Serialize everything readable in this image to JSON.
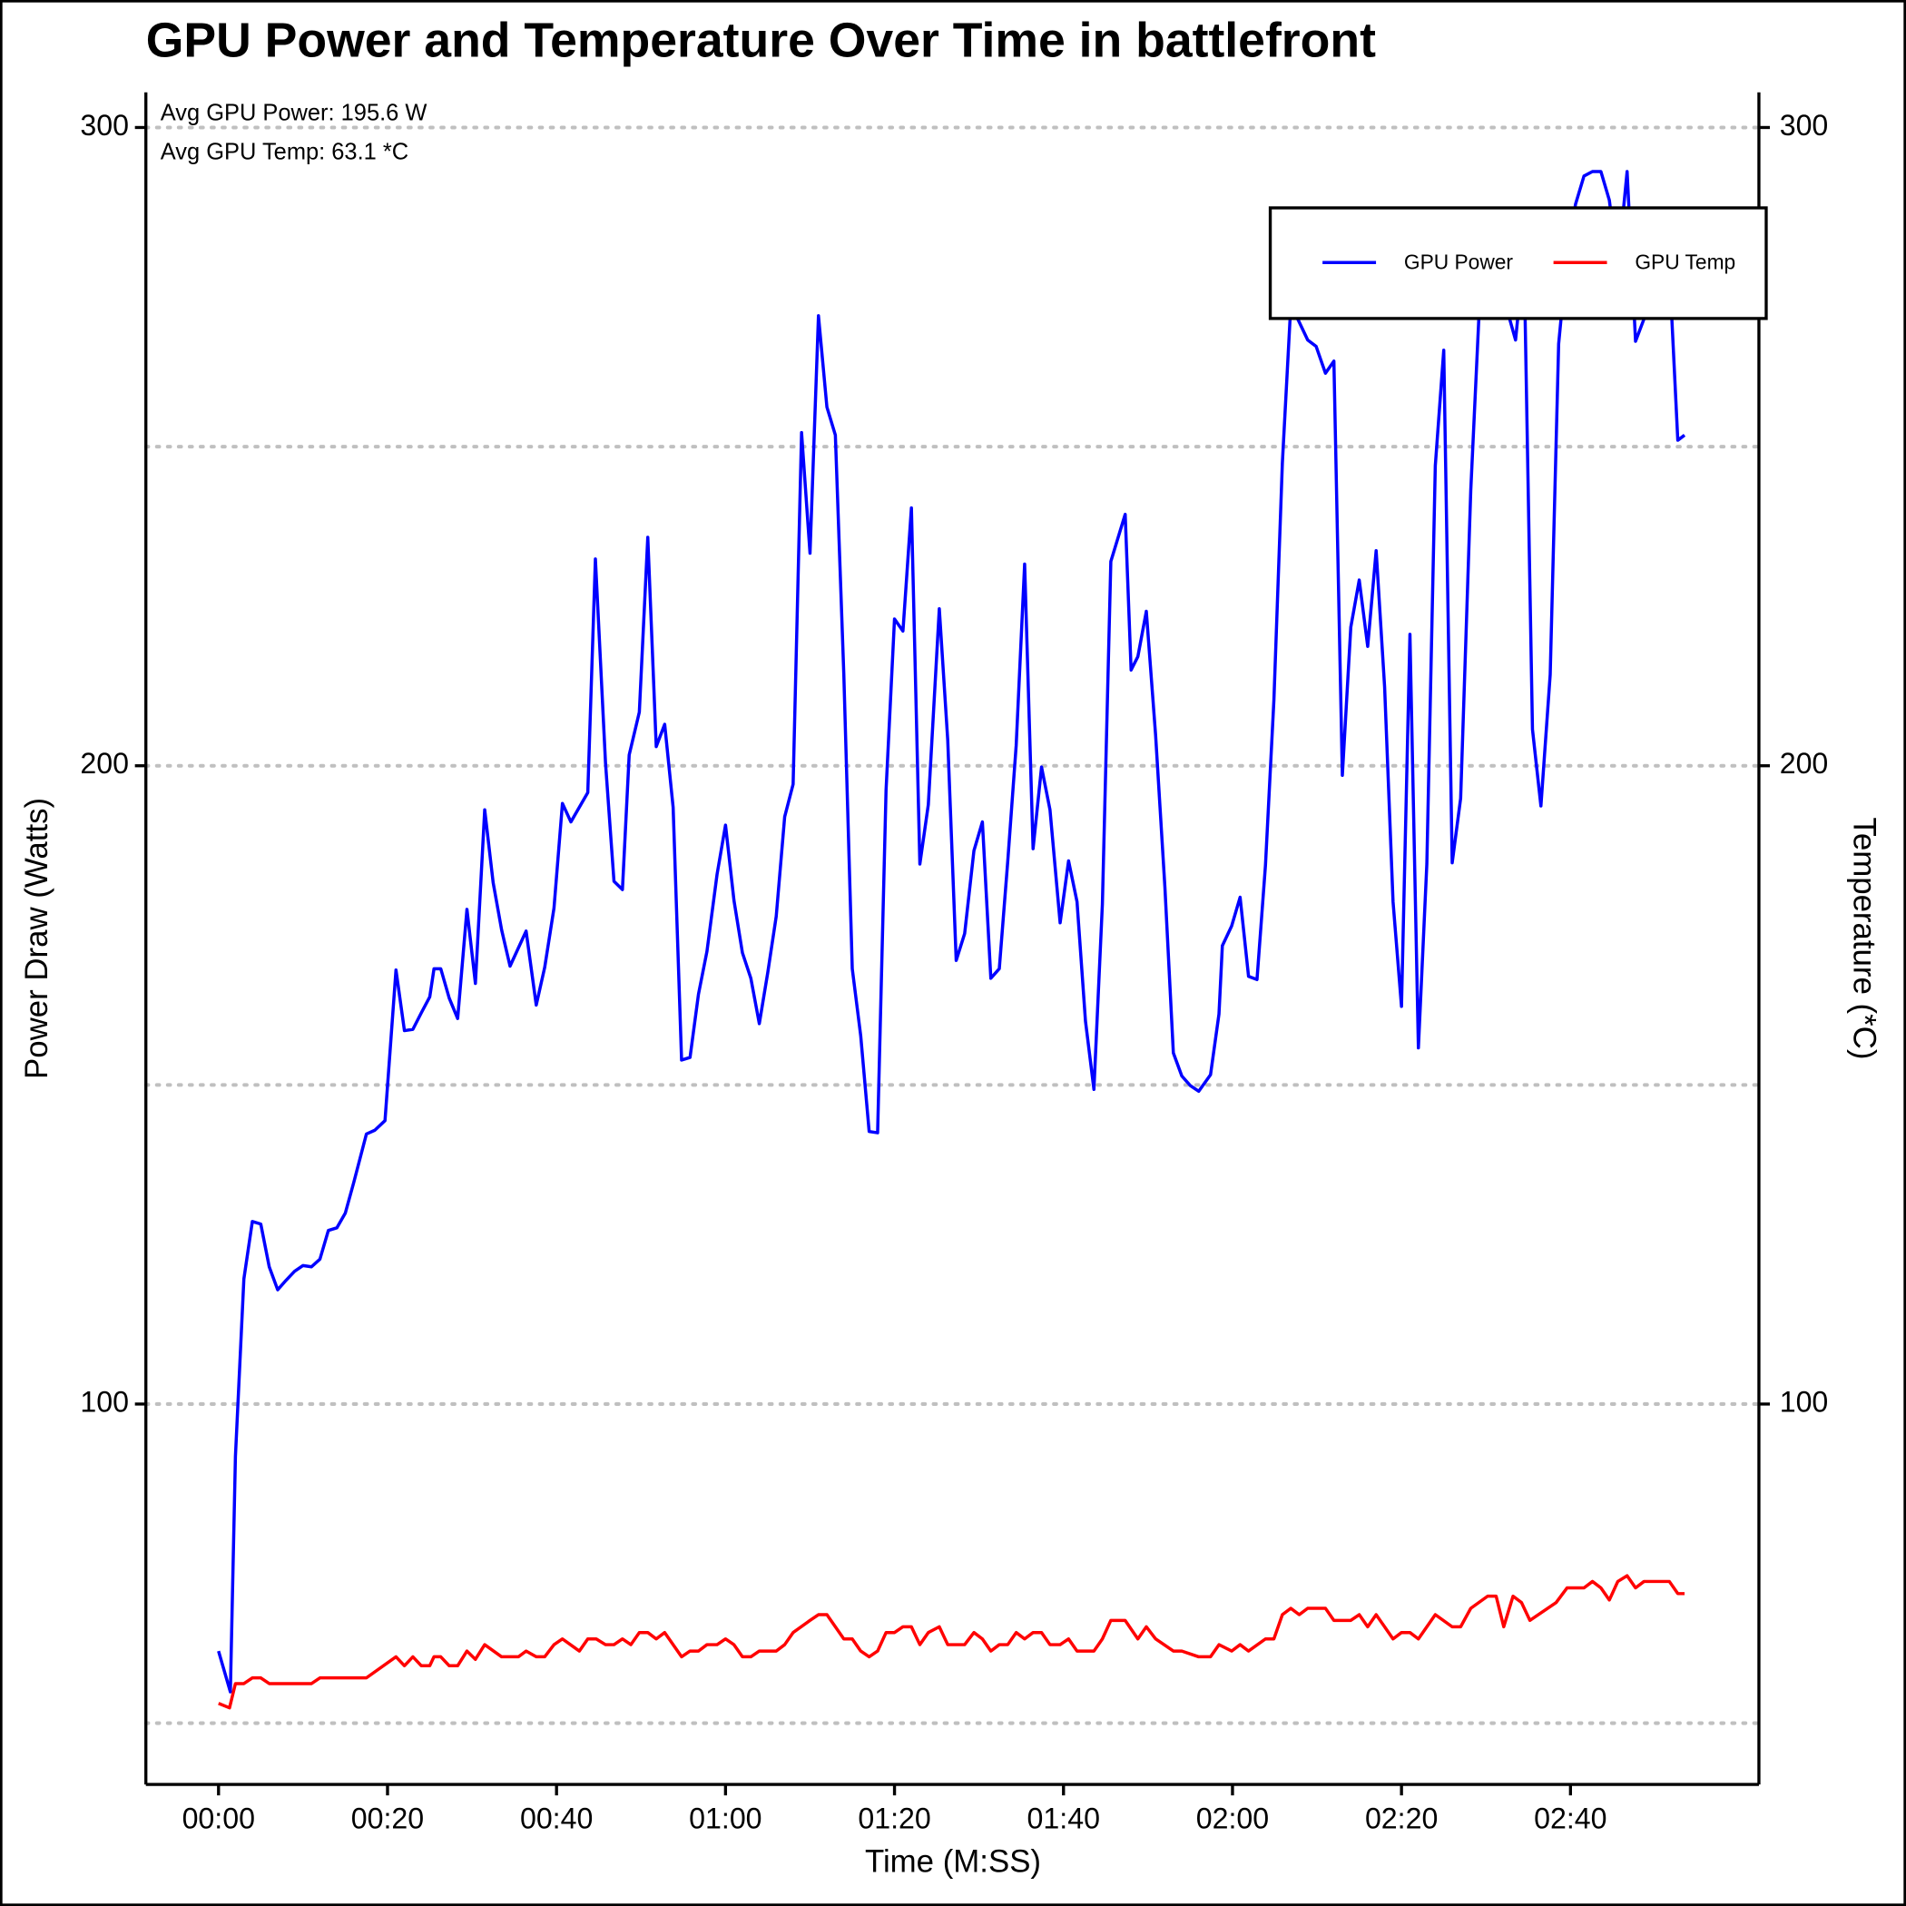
{
  "chart_data": {
    "type": "line",
    "title": "GPU Power and Temperature Over Time in battlefront",
    "annotations": [
      "Avg GPU Power: 195.6 W",
      "Avg GPU Temp: 63.1 *C"
    ],
    "xlabel": "Time (M:SS)",
    "ylabel": "Power Draw (Watts)",
    "y2label": "Temperature (*C)",
    "xlim": [
      -8.6,
      182.3
    ],
    "xticks": [
      {
        "value": 0,
        "label": "00:00"
      },
      {
        "value": 20,
        "label": "00:20"
      },
      {
        "value": 40,
        "label": "00:40"
      },
      {
        "value": 60,
        "label": "01:00"
      },
      {
        "value": 80,
        "label": "01:20"
      },
      {
        "value": 100,
        "label": "01:40"
      },
      {
        "value": 120,
        "label": "02:00"
      },
      {
        "value": 140,
        "label": "02:20"
      },
      {
        "value": 160,
        "label": "02:40"
      }
    ],
    "ylim": [
      40.4,
      305.5
    ],
    "yticks": [
      100,
      200,
      300
    ],
    "yminor": [
      50,
      150,
      250
    ],
    "y2lim": [
      40.4,
      305.5
    ],
    "y2ticks": [
      100,
      200,
      300
    ],
    "grid": true,
    "legend": "upper right",
    "series": [
      {
        "name": "GPU Power",
        "color": "#0000ff",
        "x": [
          0,
          1.4,
          2,
          3,
          4,
          5,
          6,
          7,
          8,
          9,
          10,
          11,
          12,
          13,
          14,
          15,
          16,
          17.5,
          18.5,
          19.7,
          21,
          22,
          23,
          24,
          25,
          25.5,
          26.3,
          27.3,
          28.3,
          29.4,
          30.4,
          31.5,
          32.5,
          33.5,
          34.5,
          36.4,
          37.6,
          38.6,
          39.7,
          40.7,
          41.7,
          43.7,
          44.6,
          45.8,
          46.8,
          47.8,
          48.6,
          49.8,
          50.8,
          51.8,
          52.8,
          53.8,
          54.8,
          55.8,
          56.8,
          57.8,
          59,
          60,
          61,
          62,
          63,
          64,
          65,
          66,
          67,
          68,
          69,
          70,
          71,
          72,
          73,
          74,
          75,
          76,
          77,
          78,
          79,
          80,
          81,
          82,
          83,
          84,
          85.3,
          86.3,
          87.3,
          88.3,
          89.4,
          90.4,
          91.4,
          92.4,
          93.4,
          94.4,
          95.4,
          96.4,
          97.4,
          98.4,
          99.6,
          100.6,
          101.6,
          102.6,
          103.6,
          104.6,
          105.6,
          107.3,
          108,
          108.8,
          109.8,
          110.9,
          112,
          113,
          114,
          115,
          116,
          117.4,
          118.4,
          118.8,
          119.9,
          120.9,
          121.9,
          122.9,
          123.9,
          124.9,
          125.9,
          126.9,
          127.9,
          128.9,
          129.9,
          131,
          132,
          133,
          134,
          135,
          136,
          137,
          138,
          139,
          140,
          141,
          142,
          143,
          144,
          145,
          146,
          147,
          148.2,
          149.2,
          150.2,
          151.2,
          152.5,
          153.5,
          154.5,
          155.5,
          156.5,
          157.6,
          158.6,
          159.6,
          160.6,
          161.6,
          162.6,
          163.6,
          164.6,
          165.6,
          166.7,
          167.7,
          168.7,
          169.7,
          170.7,
          171.7,
          172.7,
          173.5
        ],
        "values": [
          61.3,
          54.9,
          91.8,
          119.6,
          128.6,
          128.2,
          121.5,
          117.9,
          119.4,
          120.8,
          121.7,
          121.5,
          122.7,
          127.2,
          127.6,
          129.9,
          134.7,
          142.3,
          142.9,
          144.4,
          168,
          158.5,
          158.7,
          161.3,
          163.8,
          168.2,
          168.2,
          163.6,
          160.4,
          177.5,
          165.9,
          193.1,
          181.7,
          174.3,
          168.6,
          174.1,
          162.5,
          168.4,
          177.7,
          194.1,
          191.2,
          195.8,
          232.4,
          200.4,
          181.9,
          180.6,
          201.7,
          208.4,
          235.8,
          203,
          206.5,
          193.5,
          153.9,
          154.3,
          164.2,
          170.9,
          183,
          190.7,
          178.9,
          170.7,
          166.7,
          159.6,
          167.6,
          176.4,
          192,
          197.1,
          252.2,
          233.3,
          270.5,
          256.2,
          251.8,
          214.3,
          168.2,
          157.7,
          142.7,
          142.5,
          196.2,
          223,
          221.1,
          240.4,
          184.6,
          193.9,
          224.6,
          204,
          169.5,
          173.7,
          186.7,
          191.2,
          166.7,
          168.2,
          185,
          203.2,
          231.6,
          187,
          199.8,
          193.1,
          175.4,
          185.1,
          178.7,
          160,
          149.3,
          178.3,
          232,
          239.4,
          215,
          217.1,
          224.2,
          204.8,
          181,
          155,
          151.4,
          149.9,
          149,
          151.6,
          161.1,
          171.8,
          174.9,
          179.4,
          167,
          166.5,
          184.4,
          210.3,
          247.4,
          272.2,
          269.5,
          266.7,
          265.7,
          261.5,
          263.4,
          198.5,
          221.7,
          229.1,
          218.7,
          233.7,
          212.4,
          178.7,
          162.3,
          220.6,
          155.8,
          184.6,
          247,
          265.1,
          184.8,
          194.9,
          243.2,
          271.4,
          280,
          282,
          271.4,
          266.7,
          280,
          205.7,
          193.7,
          214.3,
          266.1,
          280,
          288,
          292.4,
          293.1,
          293.1,
          288.6,
          278,
          293.1,
          266.5,
          270,
          275,
          277,
          278,
          251,
          251.8
        ]
      },
      {
        "name": "GPU Temp",
        "color": "#ff0000",
        "axis": "y2",
        "x": [
          0,
          1.3,
          2,
          3,
          4,
          5,
          6,
          7,
          11,
          12,
          17.5,
          21,
          22,
          23,
          24,
          25,
          25.5,
          26.3,
          27.3,
          28.3,
          29.4,
          30.4,
          31.5,
          33.5,
          35.5,
          36.4,
          37.6,
          38.6,
          39.7,
          40.7,
          42.7,
          43.7,
          44.7,
          45.8,
          46.8,
          47.8,
          48.8,
          49.8,
          50.8,
          51.8,
          52.8,
          54.8,
          55.8,
          56.8,
          57.8,
          59,
          60,
          61,
          62,
          63,
          64,
          66,
          67,
          68,
          70,
          71,
          72,
          74,
          75,
          76,
          77,
          78,
          79,
          80,
          81,
          82,
          83,
          84,
          85.3,
          86.3,
          88.3,
          89.4,
          90.4,
          91.4,
          92.4,
          93.4,
          94.4,
          95.4,
          96.4,
          97.4,
          98.4,
          99.6,
          100.6,
          101.6,
          103.6,
          104.6,
          105.6,
          107.3,
          108.8,
          109.8,
          110.9,
          113,
          114,
          116,
          117.4,
          118.4,
          119.9,
          120.9,
          121.9,
          123.9,
          124.9,
          125.9,
          126.9,
          127.9,
          128.9,
          131,
          132,
          134,
          135,
          136,
          137,
          139,
          140,
          141,
          142,
          144,
          146,
          147,
          148.2,
          150.2,
          151.2,
          152.1,
          153.2,
          154.2,
          155.2,
          158.3,
          159.6,
          161.6,
          162.6,
          163.6,
          164.6,
          165.6,
          166.7,
          167.7,
          168.7,
          171.7,
          172.7,
          173.5
        ],
        "values": [
          53.1,
          52.4,
          56.2,
          56.2,
          57.1,
          57.1,
          56.2,
          56.2,
          56.2,
          57.1,
          57.1,
          60.4,
          59,
          60.4,
          59,
          59,
          60.4,
          60.4,
          59,
          59,
          61.3,
          60,
          62.3,
          60.4,
          60.4,
          61.3,
          60.4,
          60.4,
          62.3,
          63.2,
          61.3,
          63.2,
          63.2,
          62.3,
          62.3,
          63.2,
          62.3,
          64.2,
          64.2,
          63.2,
          64.2,
          60.4,
          61.3,
          61.3,
          62.3,
          62.3,
          63.2,
          62.3,
          60.4,
          60.4,
          61.3,
          61.3,
          62.3,
          64.2,
          66.1,
          67,
          67,
          63.2,
          63.2,
          61.3,
          60.4,
          61.3,
          64.2,
          64.2,
          65.1,
          65.1,
          62.3,
          64.2,
          65.1,
          62.3,
          62.3,
          64.2,
          63.2,
          61.3,
          62.3,
          62.3,
          64.2,
          63.2,
          64.2,
          64.2,
          62.3,
          62.3,
          63.2,
          61.3,
          61.3,
          63.2,
          66.1,
          66.1,
          63.2,
          65.1,
          63.2,
          61.3,
          61.3,
          60.4,
          60.4,
          62.3,
          61.3,
          62.3,
          61.3,
          63.2,
          63.2,
          67,
          68,
          67,
          68,
          68,
          66.1,
          66.1,
          67,
          65.1,
          67,
          63.2,
          64.2,
          64.2,
          63.2,
          67,
          65.1,
          65.1,
          68,
          69.9,
          69.9,
          65.1,
          69.9,
          68.9,
          66.1,
          68.9,
          71.2,
          71.2,
          72.2,
          71.2,
          69.3,
          72.2,
          73.1,
          71.2,
          72.2,
          72.2,
          70.3,
          70.3
        ]
      }
    ]
  }
}
